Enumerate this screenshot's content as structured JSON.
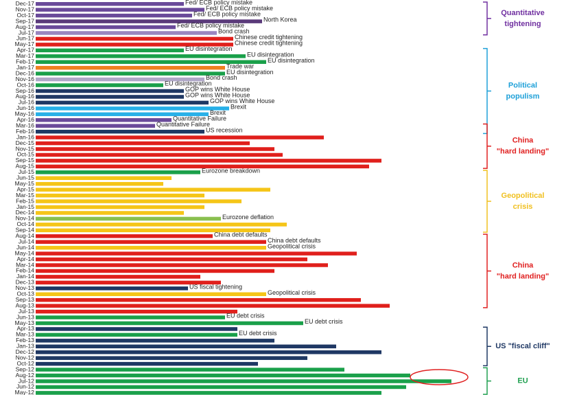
{
  "chart_data": {
    "type": "barh",
    "categories": [
      "Dec-17",
      "Nov-17",
      "Oct-17",
      "Sep-17",
      "Aug-17",
      "Jul-17",
      "Jun-17",
      "May-17",
      "Apr-17",
      "Mar-17",
      "Feb-17",
      "Jan-17",
      "Dec-16",
      "Nov-16",
      "Oct-16",
      "Sep-16",
      "Aug-16",
      "Jul-16",
      "Jun-16",
      "May-16",
      "Apr-16",
      "Mar-16",
      "Feb-16",
      "Jan-16",
      "Dec-15",
      "Nov-15",
      "Oct-15",
      "Sep-15",
      "Aug-15",
      "Jul-15",
      "Jun-15",
      "May-15",
      "Apr-15",
      "Mar-15",
      "Feb-15",
      "Jan-15",
      "Dec-14",
      "Nov-14",
      "Oct-14",
      "Sep-14",
      "Aug-14",
      "Jul-14",
      "Jun-14",
      "May-14",
      "Apr-14",
      "Mar-14",
      "Feb-14",
      "Jan-14",
      "Dec-13",
      "Nov-13",
      "Oct-13",
      "Sep-13",
      "Aug-13",
      "Jul-13",
      "Jun-13",
      "May-13",
      "Apr-13",
      "Mar-13",
      "Feb-13",
      "Jan-13",
      "Dec-12",
      "Nov-12",
      "Oct-12",
      "Sep-12",
      "Aug-12",
      "Jul-12",
      "Jun-12",
      "May-12"
    ],
    "values": [
      36,
      41,
      38,
      55,
      34,
      44,
      48,
      48,
      36,
      51,
      56,
      46,
      46,
      41,
      31,
      36,
      36,
      42,
      47,
      42,
      33,
      29,
      41,
      70,
      52,
      58,
      60,
      84,
      81,
      40,
      33,
      31,
      57,
      41,
      50,
      41,
      36,
      45,
      61,
      57,
      43,
      56,
      56,
      78,
      66,
      71,
      58,
      40,
      45,
      37,
      56,
      79,
      86,
      49,
      46,
      65,
      49,
      49,
      58,
      73,
      84,
      66,
      54,
      75,
      91,
      101,
      90,
      84
    ],
    "colors": [
      "#6a4a9a",
      "#6a4a9a",
      "#6a4a9a",
      "#5a3a7a",
      "#6a4a9a",
      "#9a86c0",
      "#e0201c",
      "#e0201c",
      "#1aa04a",
      "#1aa04a",
      "#1aa04a",
      "#f08020",
      "#1aa04a",
      "#b0a8c8",
      "#1aa04a",
      "#1f3864",
      "#1f3864",
      "#1f3864",
      "#28b0e8",
      "#28b0e8",
      "#6a4a9a",
      "#6a4a9a",
      "#1f3864",
      "#e0201c",
      "#e0201c",
      "#e0201c",
      "#e0201c",
      "#e0201c",
      "#e0201c",
      "#1aa04a",
      "#f5c518",
      "#f5c518",
      "#f5c518",
      "#f5c518",
      "#f5c518",
      "#f5c518",
      "#f5c518",
      "#8ac050",
      "#f5c518",
      "#f5c518",
      "#e0201c",
      "#e0201c",
      "#f5c518",
      "#e0201c",
      "#e0201c",
      "#e0201c",
      "#e0201c",
      "#e0201c",
      "#e0201c",
      "#1f3864",
      "#f5c518",
      "#e0201c",
      "#e0201c",
      "#e0201c",
      "#1aa04a",
      "#1aa04a",
      "#1f3864",
      "#1aa04a",
      "#1f3864",
      "#1f3864",
      "#1f3864",
      "#1f3864",
      "#1f3864",
      "#1aa04a",
      "#1aa04a",
      "#1aa04a",
      "#1aa04a",
      "#1aa04a"
    ],
    "bar_labels": [
      "Fed/ ECB policy mistake",
      "Fed/ ECB policy mistake",
      "Fed/ ECB policy mistake",
      "North Korea",
      "Fed/ ECB policy mistake",
      "Bond crash",
      "Chinese credit tightening",
      "Chinese credit tightening",
      "EU disintegration",
      "EU disintegration",
      "EU disintegration",
      "Trade war",
      "EU disintegration",
      "Bond crash",
      "EU disintegration",
      "GOP wins White House",
      "GOP wins White House",
      "GOP wins White House",
      "Brexit",
      "Brexit",
      "Quantitative Failure",
      "Quantitative Failure",
      "US recession",
      null,
      null,
      null,
      null,
      null,
      null,
      "Eurozone breakdown",
      null,
      null,
      null,
      null,
      null,
      null,
      null,
      "Eurozone deflation",
      null,
      null,
      "China debt defaults",
      "China debt defaults",
      "Geopolitical crisis",
      null,
      null,
      null,
      null,
      null,
      null,
      "US fiscal tightening",
      "Geopolitical crisis",
      null,
      null,
      null,
      "EU debt crisis",
      "EU debt crisis",
      null,
      "EU debt crisis",
      null,
      null,
      null,
      null,
      null,
      null,
      null,
      null,
      null,
      null
    ],
    "xlim": [
      0,
      110
    ],
    "groups": [
      {
        "lines": [
          "Quantitative",
          "tightening"
        ],
        "color": "#7030a0",
        "start": "Dec-17",
        "end": "Jul-17"
      },
      {
        "lines": [
          "Political",
          "populism"
        ],
        "color": "#1ea0d8",
        "start": "Apr-17",
        "end": "Feb-16"
      },
      {
        "lines": [
          "China",
          "\"hard landing\""
        ],
        "color": "#e02020",
        "start": "Mar-16",
        "end": "Aug-15"
      },
      {
        "lines": [
          "Geopolitical",
          "crisis"
        ],
        "color": "#f0c020",
        "start": "Jul-15",
        "end": "Sep-14"
      },
      {
        "lines": [
          "China",
          "\"hard landing\""
        ],
        "color": "#e02020",
        "start": "Aug-14",
        "end": "Aug-13"
      },
      {
        "lines": [
          "US \"fiscal cliff\""
        ],
        "color": "#1f3864",
        "start": "Apr-13",
        "end": "Oct-12"
      },
      {
        "lines": [
          "EU"
        ],
        "color": "#20a050",
        "start": "Sep-12",
        "end": "May-12"
      }
    ]
  }
}
